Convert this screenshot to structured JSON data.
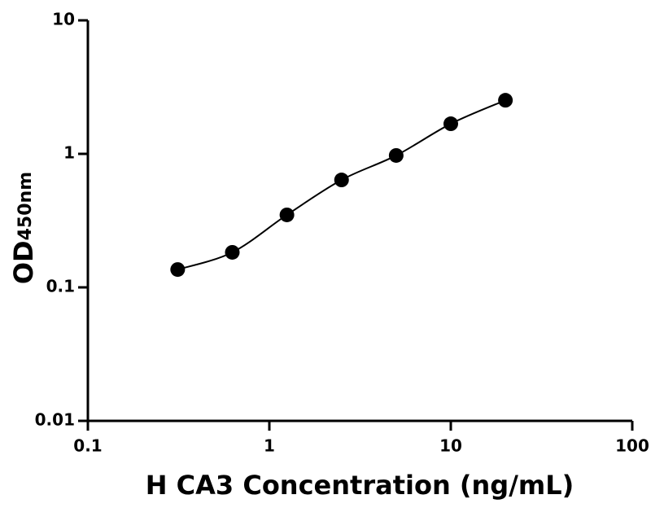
{
  "chart_data": {
    "type": "scatter",
    "xlabel": "H CA3 Concentration (ng/mL)",
    "ylabel": {
      "main": "OD",
      "sub": "450nm"
    },
    "x": [
      0.3125,
      0.625,
      1.25,
      2.5,
      5,
      10,
      20
    ],
    "values": [
      0.136,
      0.183,
      0.349,
      0.638,
      0.973,
      1.68,
      2.52
    ],
    "color": "#000000",
    "xlog": true,
    "ylog": true,
    "xlim": [
      0.1,
      100
    ],
    "ylim": [
      0.01,
      10
    ],
    "xticks": [
      0.1,
      1,
      10,
      100
    ],
    "yticks": [
      0.01,
      0.1,
      1,
      10
    ],
    "grid": false
  }
}
